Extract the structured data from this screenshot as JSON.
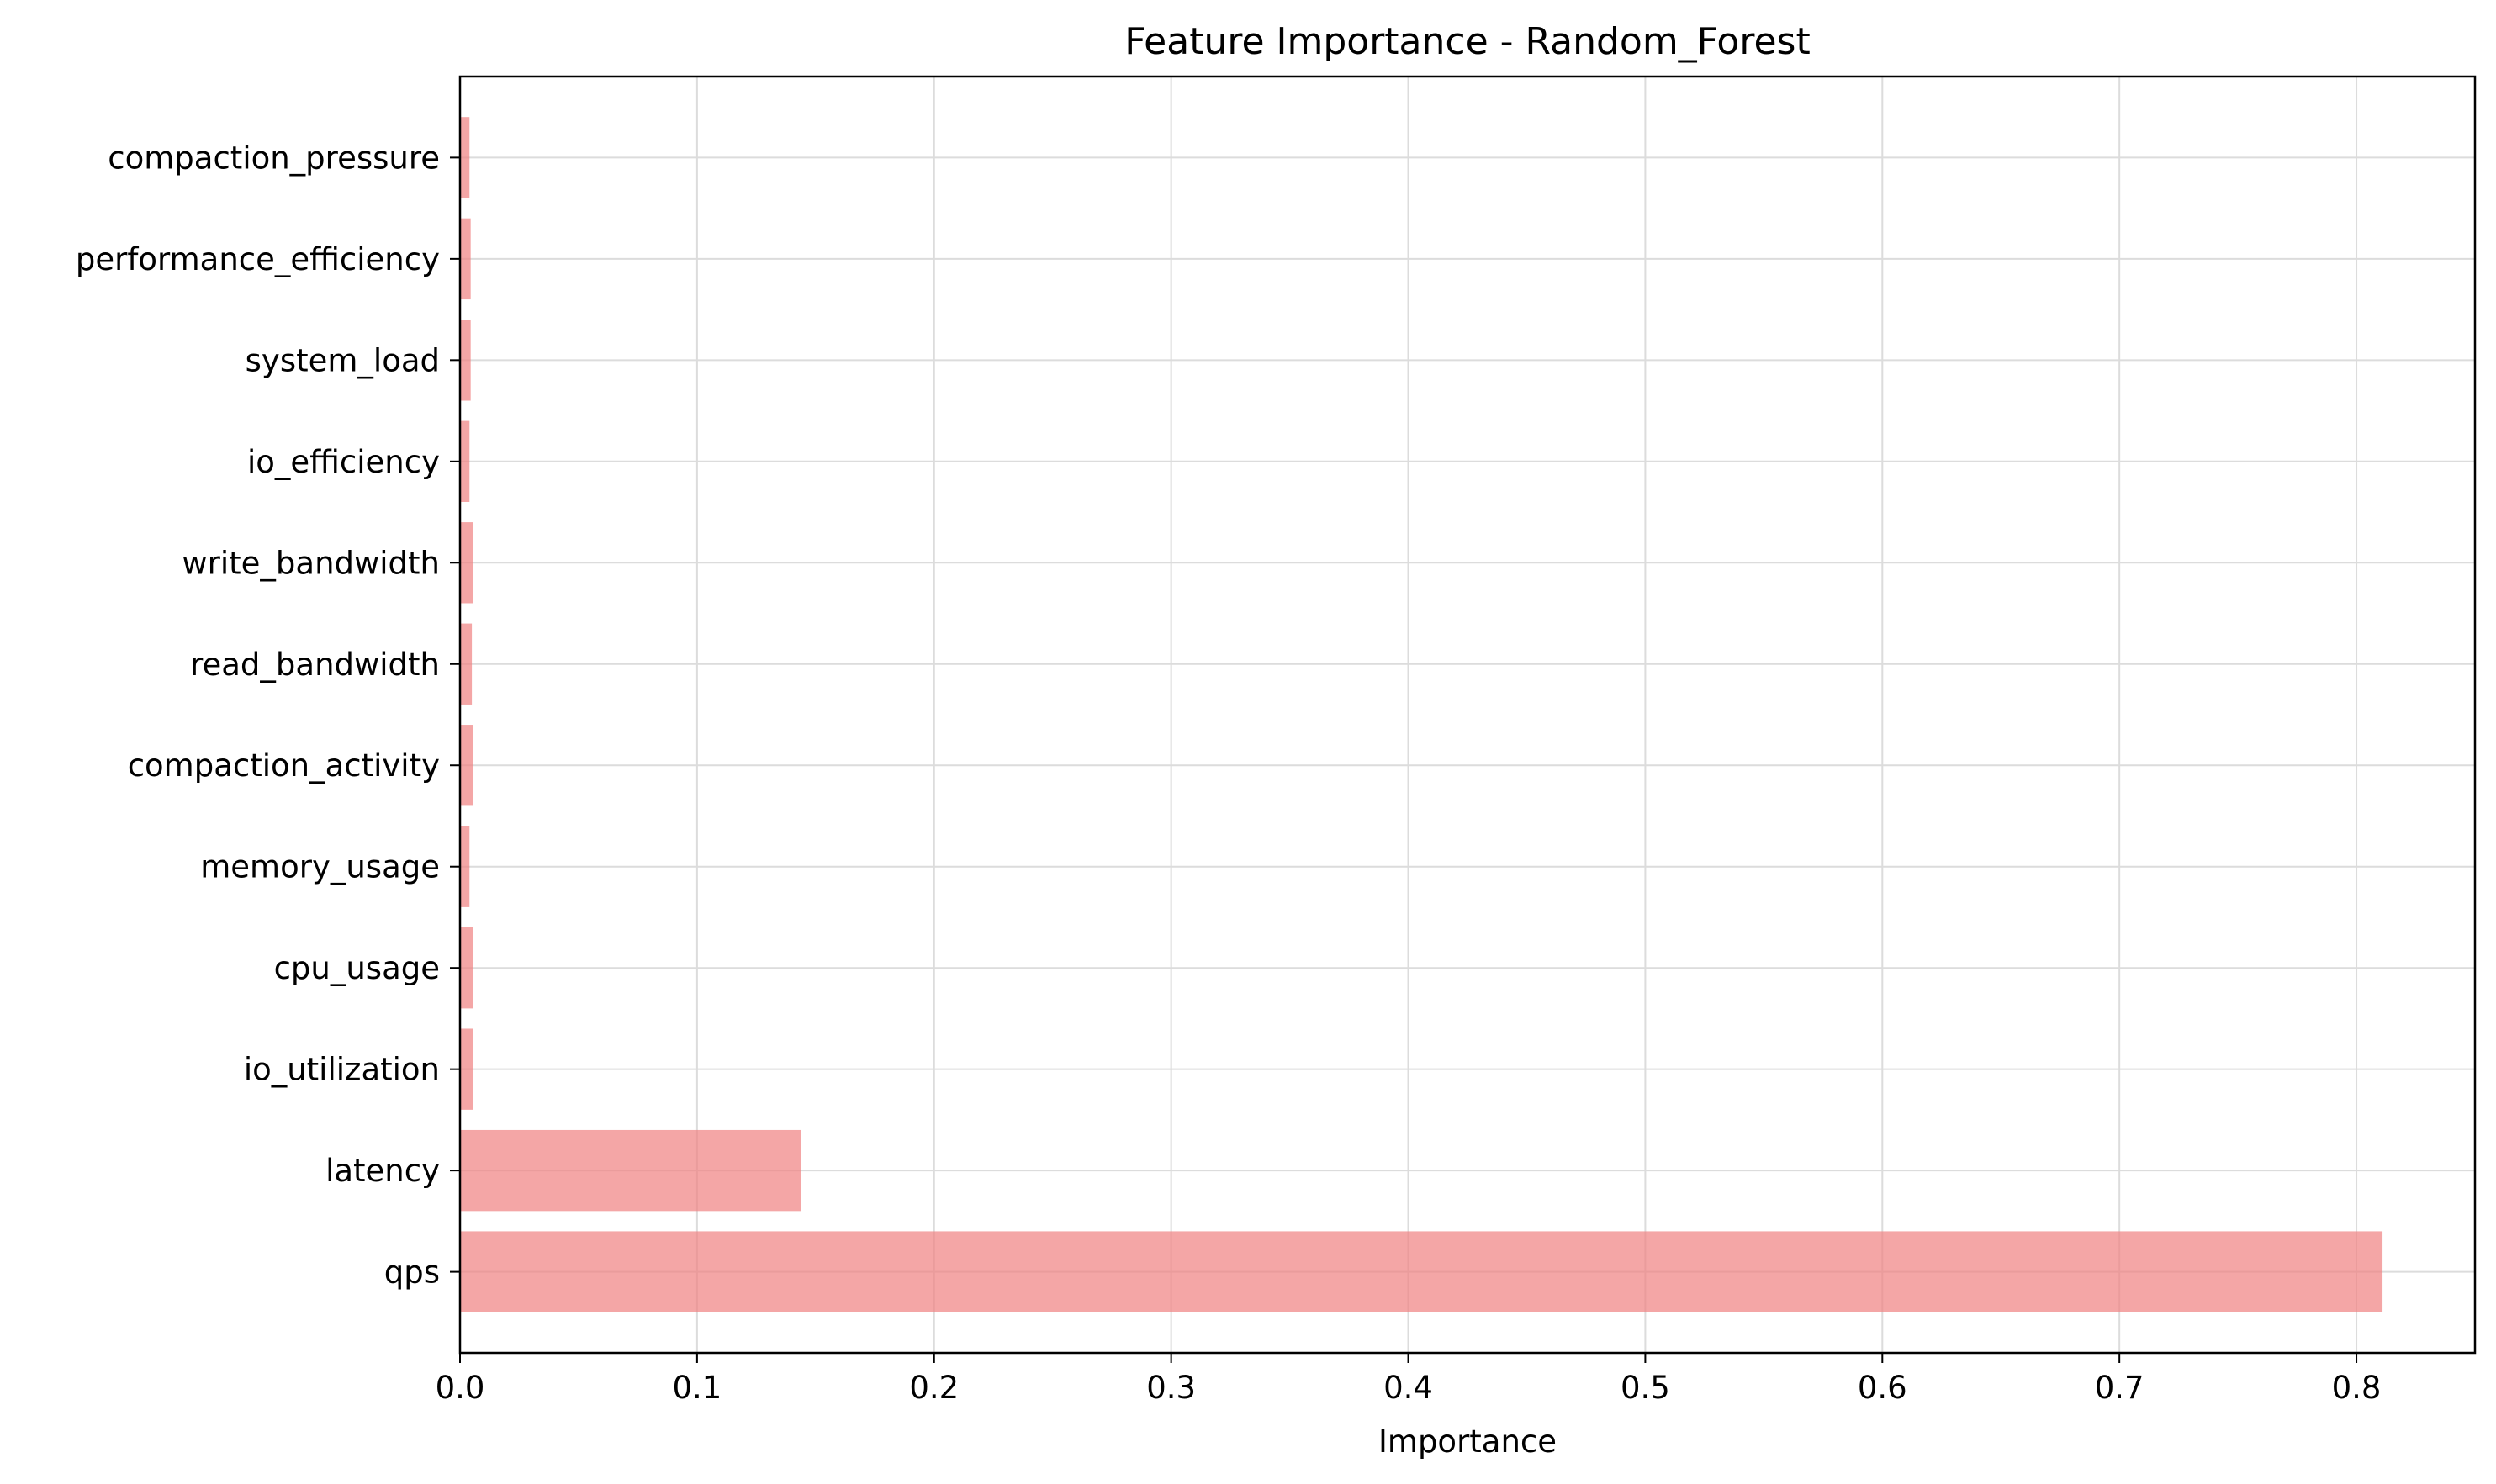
{
  "chart_data": {
    "type": "bar",
    "orientation": "horizontal",
    "title": "Feature Importance - Random_Forest",
    "xlabel": "Importance",
    "ylabel": "",
    "xlim": [
      0,
      0.85
    ],
    "xticks": [
      "0.0",
      "0.1",
      "0.2",
      "0.3",
      "0.4",
      "0.5",
      "0.6",
      "0.7",
      "0.8"
    ],
    "categories": [
      "qps",
      "latency",
      "io_utilization",
      "cpu_usage",
      "memory_usage",
      "compaction_activity",
      "read_bandwidth",
      "write_bandwidth",
      "io_efficiency",
      "system_load",
      "performance_efficiency",
      "compaction_pressure"
    ],
    "values": [
      0.811,
      0.144,
      0.0055,
      0.0055,
      0.004,
      0.0055,
      0.005,
      0.0055,
      0.004,
      0.0045,
      0.0045,
      0.004
    ],
    "bar_color": "#f08080",
    "bar_opacity": 0.7,
    "grid": true,
    "legend": "none"
  }
}
